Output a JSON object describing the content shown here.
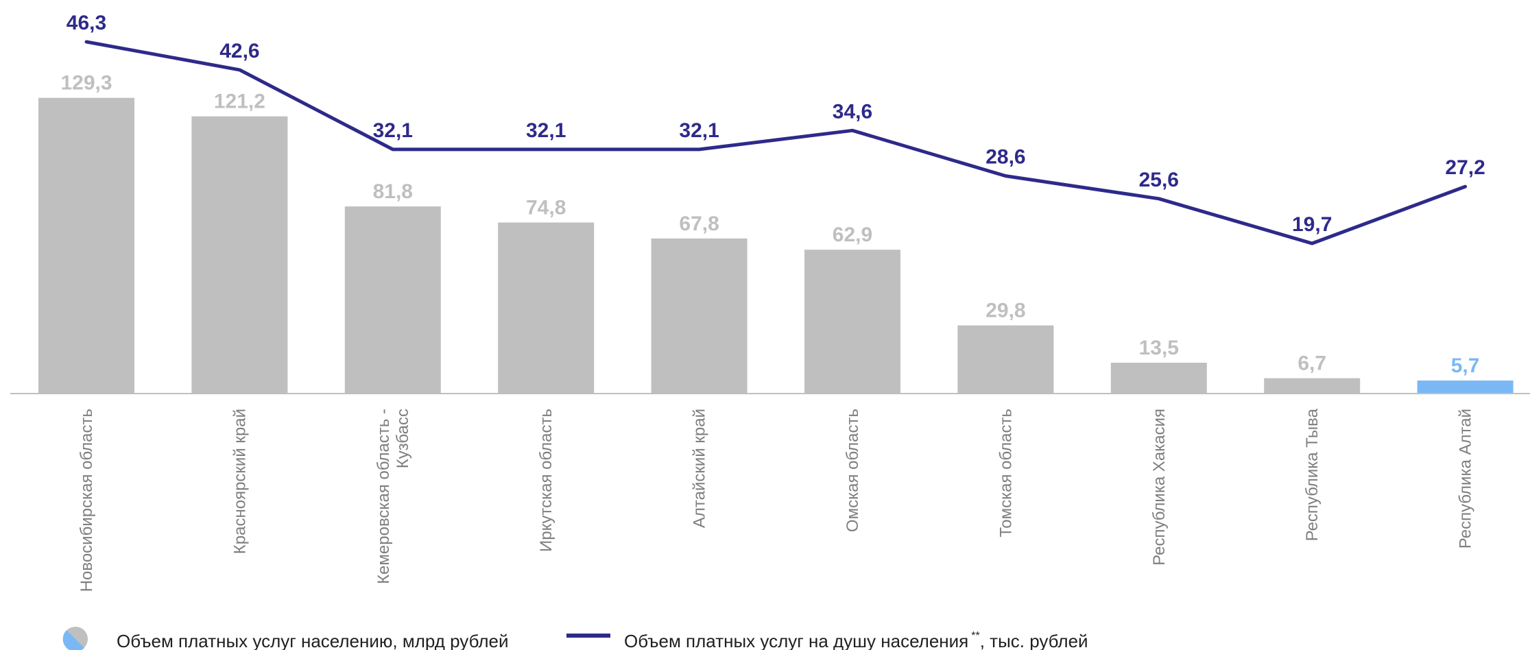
{
  "chart_data": {
    "type": "bar",
    "categories": [
      "Новосибирская область",
      "Красноярский край",
      "Кемеровская область - Кузбасс",
      "Иркутская область",
      "Алтайский край",
      "Омская область",
      "Томская область",
      "Республика Хакасия",
      "Республика Тыва",
      "Республика Алтай"
    ],
    "category_lines": [
      [
        "Новосибирская область"
      ],
      [
        "Красноярский край"
      ],
      [
        "Кемеровская область -",
        "Кузбасс"
      ],
      [
        "Иркутская область"
      ],
      [
        "Алтайский край"
      ],
      [
        "Омская область"
      ],
      [
        "Томская область"
      ],
      [
        "Республика Хакасия"
      ],
      [
        "Республика Тыва"
      ],
      [
        "Республика Алтай"
      ]
    ],
    "series": [
      {
        "name": "Объем платных услуг населению, млрд рублей",
        "type": "bar",
        "values": [
          129.3,
          121.2,
          81.8,
          74.8,
          67.8,
          62.9,
          29.8,
          13.5,
          6.7,
          5.7
        ],
        "labels": [
          "129,3",
          "121,2",
          "81,8",
          "74,8",
          "67,8",
          "62,9",
          "29,8",
          "13,5",
          "6,7",
          "5,7"
        ],
        "color": "#bfbfbf",
        "highlight_index": 9,
        "highlight_color": "#7ab8f5"
      },
      {
        "name": "Объем платных услуг на душу населения",
        "name_suffix": ", тыс. рублей",
        "name_superscript": "**",
        "type": "line",
        "values": [
          46.3,
          42.6,
          32.1,
          32.1,
          32.1,
          34.6,
          28.6,
          25.6,
          19.7,
          27.2
        ],
        "labels": [
          "46,3",
          "42,6",
          "32,1",
          "32,1",
          "32,1",
          "34,6",
          "28,6",
          "25,6",
          "19,7",
          "27,2"
        ],
        "color": "#2e2a8a"
      }
    ],
    "bar_axis_range": [
      0,
      140
    ],
    "line_axis_range": [
      0,
      51
    ],
    "grid": false,
    "legend_position": "bottom"
  },
  "legend": {
    "bar_label": "Объем платных услуг населению, млрд рублей",
    "line_label": "Объем платных услуг на душу населения",
    "line_superscript": "**",
    "line_suffix": ", тыс. рублей"
  }
}
